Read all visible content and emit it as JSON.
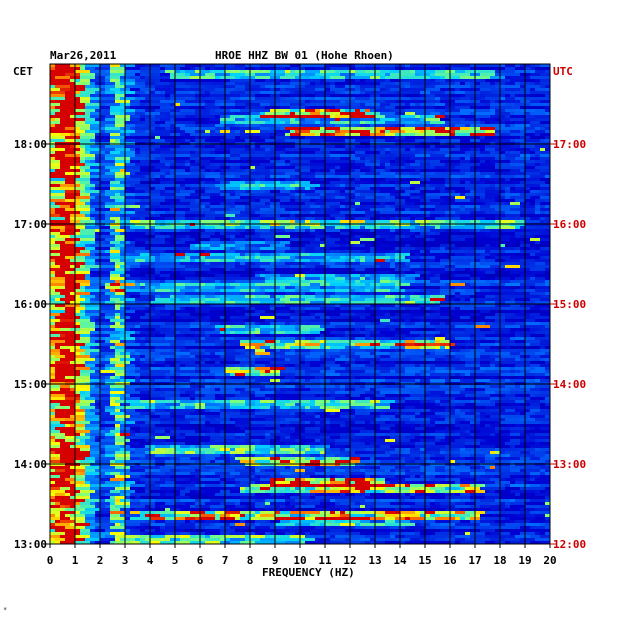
{
  "header": {
    "date": "Mar26,2011",
    "station": "HROE HHZ BW 01 (Hohe Rhoen)"
  },
  "left_axis_label": "CET",
  "right_axis_label": "UTC",
  "footer_mark": "*",
  "colors": {
    "background": "#00008f",
    "low": "#0000c8",
    "mid": "#00b4ff",
    "high": "#ffff00",
    "peak": "#e00000",
    "utc_text": "#cc0000"
  },
  "chart_data": {
    "type": "heatmap",
    "title": "HROE HHZ BW 01 (Hohe Rhoen)",
    "date": "Mar26,2011",
    "xlabel": "FREQUENCY (HZ)",
    "ylabel": "",
    "xlim": [
      0,
      20
    ],
    "x_ticks": [
      0,
      1,
      2,
      3,
      4,
      5,
      6,
      7,
      8,
      9,
      10,
      11,
      12,
      13,
      14,
      15,
      16,
      17,
      18,
      19,
      20
    ],
    "x_tick_labels": [
      "0",
      "1",
      "2",
      "3",
      "4",
      "5",
      "6",
      "7",
      "8",
      "9",
      "10",
      "11",
      "12",
      "13",
      "14",
      "15",
      "16",
      "17",
      "18",
      "19",
      "20"
    ],
    "y_left_label": "CET",
    "y_right_label": "UTC",
    "y_left_ticks": [
      "18:00",
      "17:00",
      "16:00",
      "15:00",
      "14:00",
      "13:00"
    ],
    "y_right_ticks": [
      "17:00",
      "16:00",
      "15:00",
      "14:00",
      "13:00",
      "12:00"
    ],
    "time_range_utc": [
      "12:00",
      "18:00"
    ],
    "grid": true,
    "energy_bands_hz": [
      {
        "center": 0.5,
        "width": 0.6,
        "strength": 1.0
      },
      {
        "center": 2.6,
        "width": 0.3,
        "strength": 0.55
      },
      {
        "center": 1.3,
        "width": 0.4,
        "strength": 0.3
      }
    ]
  }
}
